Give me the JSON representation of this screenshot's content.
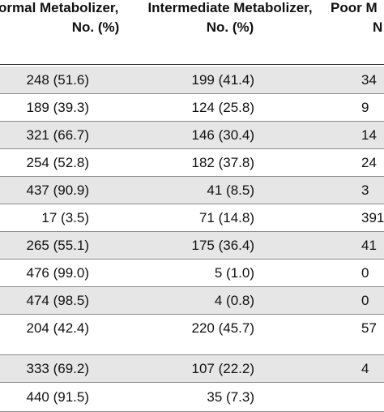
{
  "table": {
    "headers": [
      {
        "line1": "ormal Metabolizer,",
        "line2": "No. (%)"
      },
      {
        "line1": "Intermediate Metabolizer,",
        "line2": "No. (%)"
      },
      {
        "line1": "Poor M",
        "line2": "N"
      }
    ],
    "rows": [
      {
        "c1": "248 (51.6)",
        "c2": "199 (41.4)",
        "c3": "34",
        "shaded": true
      },
      {
        "c1": "189 (39.3)",
        "c2": "124 (25.8)",
        "c3": "9",
        "shaded": false
      },
      {
        "c1": "321 (66.7)",
        "c2": "146 (30.4)",
        "c3": "14",
        "shaded": true
      },
      {
        "c1": "254 (52.8)",
        "c2": "182 (37.8)",
        "c3": "24",
        "shaded": false
      },
      {
        "c1": "437 (90.9)",
        "c2": "41 (8.5)",
        "c3": "3",
        "shaded": true
      },
      {
        "c1": "17 (3.5)",
        "c2": "71 (14.8)",
        "c3": "391",
        "shaded": false
      },
      {
        "c1": "265 (55.1)",
        "c2": "175 (36.4)",
        "c3": "41",
        "shaded": true
      },
      {
        "c1": "476 (99.0)",
        "c2": "5 (1.0)",
        "c3": "0",
        "shaded": false
      },
      {
        "c1": "474 (98.5)",
        "c2": "4 (0.8)",
        "c3": "0",
        "shaded": true
      },
      {
        "c1": "204 (42.4)",
        "c2": "220 (45.7)",
        "c3": "57",
        "shaded": false
      },
      {
        "c1": "333 (69.2)",
        "c2": "107 (22.2)",
        "c3": "4",
        "shaded": true
      },
      {
        "c1": "440 (91.5)",
        "c2": "35 (7.3)",
        "c3": "",
        "shaded": false
      }
    ]
  }
}
